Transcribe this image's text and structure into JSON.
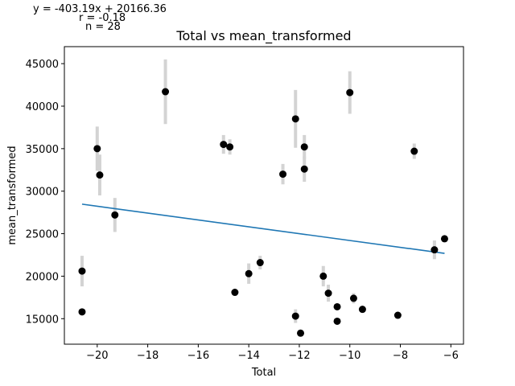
{
  "annotations": {
    "equation": "y = -403.19x + 20166.36",
    "r": "r = -0.18",
    "n": "n = 28"
  },
  "chart_data": {
    "type": "scatter",
    "title": "Total vs mean_transformed",
    "xlabel": "Total",
    "ylabel": "mean_transformed",
    "xlim": [
      -21.3,
      -5.5
    ],
    "ylim": [
      12000,
      47000
    ],
    "xticks": [
      -20,
      -18,
      -16,
      -14,
      -12,
      -10,
      -8,
      -6
    ],
    "xtick_labels": [
      "−20",
      "−18",
      "−16",
      "−14",
      "−12",
      "−10",
      "−8",
      "−6"
    ],
    "yticks": [
      15000,
      20000,
      25000,
      30000,
      35000,
      40000,
      45000
    ],
    "ytick_labels": [
      "15000",
      "20000",
      "25000",
      "30000",
      "35000",
      "40000",
      "45000"
    ],
    "grid": false,
    "colors": {
      "points": "#000000",
      "errorbars": "#d3d3d3",
      "fit_line": "#1f77b4"
    },
    "points": [
      {
        "x": -20.6,
        "y": 20600,
        "err": 1800
      },
      {
        "x": -20.6,
        "y": 15800,
        "err": 0
      },
      {
        "x": -20.0,
        "y": 35000,
        "err": 2600
      },
      {
        "x": -19.9,
        "y": 31900,
        "err": 2400
      },
      {
        "x": -19.3,
        "y": 27200,
        "err": 2000
      },
      {
        "x": -17.3,
        "y": 41700,
        "err": 3800
      },
      {
        "x": -15.0,
        "y": 35500,
        "err": 1100
      },
      {
        "x": -14.75,
        "y": 35200,
        "err": 900
      },
      {
        "x": -14.55,
        "y": 18100,
        "err": 0
      },
      {
        "x": -14.0,
        "y": 20300,
        "err": 1200
      },
      {
        "x": -13.55,
        "y": 21600,
        "err": 800
      },
      {
        "x": -12.65,
        "y": 32000,
        "err": 1200
      },
      {
        "x": -12.15,
        "y": 38500,
        "err": 3400
      },
      {
        "x": -12.15,
        "y": 15300,
        "err": 800
      },
      {
        "x": -11.95,
        "y": 13300,
        "err": 0
      },
      {
        "x": -11.8,
        "y": 35200,
        "err": 1400
      },
      {
        "x": -11.8,
        "y": 32600,
        "err": 1500
      },
      {
        "x": -11.05,
        "y": 20000,
        "err": 1200
      },
      {
        "x": -10.85,
        "y": 18000,
        "err": 1000
      },
      {
        "x": -10.5,
        "y": 16400,
        "err": 0
      },
      {
        "x": -10.5,
        "y": 14700,
        "err": 0
      },
      {
        "x": -10.0,
        "y": 41600,
        "err": 2500
      },
      {
        "x": -9.85,
        "y": 17400,
        "err": 600
      },
      {
        "x": -9.5,
        "y": 16100,
        "err": 0
      },
      {
        "x": -8.1,
        "y": 15400,
        "err": 0
      },
      {
        "x": -7.45,
        "y": 34700,
        "err": 900
      },
      {
        "x": -6.65,
        "y": 23100,
        "err": 1100
      },
      {
        "x": -6.25,
        "y": 24400,
        "err": 0
      }
    ],
    "fit_line": {
      "slope": -403.19,
      "intercept": 20166.36,
      "x_range": [
        -20.6,
        -6.25
      ]
    }
  }
}
